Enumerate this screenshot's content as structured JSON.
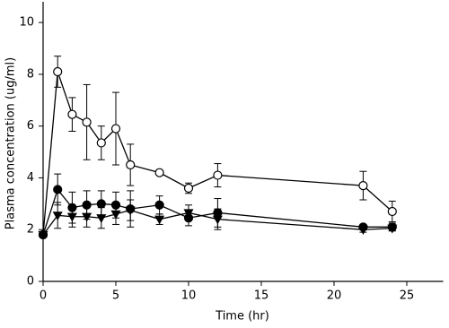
{
  "chart_data": {
    "type": "line",
    "x_label": "Time (hr)",
    "y_label": "Plasma concentration (ug/ml)",
    "x": [
      0,
      1,
      2,
      3,
      4,
      5,
      6,
      8,
      10,
      12,
      22,
      24
    ],
    "series": [
      {
        "color": "#000000",
        "marker": "open-circle",
        "values": [
          1.8,
          8.1,
          6.45,
          6.15,
          5.35,
          5.9,
          4.5,
          4.2,
          3.6,
          4.1,
          3.7,
          2.7
        ],
        "errors": [
          0,
          0.6,
          0.65,
          1.45,
          0.65,
          1.4,
          0.8,
          0,
          0.2,
          0.45,
          0.55,
          0.4
        ]
      },
      {
        "color": "#000000",
        "marker": "filled-circle",
        "values": [
          1.8,
          3.55,
          2.85,
          2.95,
          3.0,
          2.95,
          2.8,
          2.95,
          2.45,
          2.65,
          2.1,
          2.1
        ],
        "errors": [
          0,
          0.6,
          0.6,
          0.55,
          0.5,
          0.5,
          0.7,
          0.35,
          0.3,
          0.55,
          0.1,
          0.15
        ]
      },
      {
        "color": "#000000",
        "marker": "filled-triangle-down",
        "values": [
          1.8,
          2.55,
          2.5,
          2.5,
          2.45,
          2.6,
          2.75,
          2.4,
          2.65,
          2.4,
          2.0,
          2.05
        ],
        "errors": [
          0,
          0.5,
          0.4,
          0.4,
          0.4,
          0.4,
          0.4,
          0.2,
          0.3,
          0.4,
          0.1,
          0.1
        ]
      }
    ],
    "xlim": [
      0,
      27.5
    ],
    "xticks": [
      0,
      5,
      10,
      15,
      20,
      25
    ],
    "ylim": [
      0,
      10.8
    ],
    "yticks": [
      0,
      2,
      4,
      6,
      8,
      10
    ],
    "grid": false,
    "legend": false
  }
}
